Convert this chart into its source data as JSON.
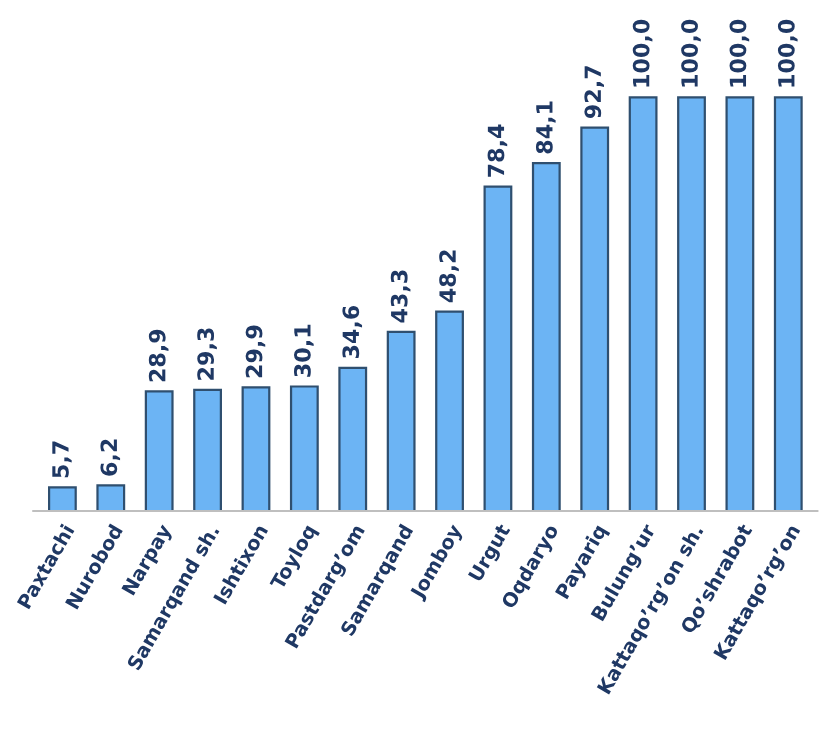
{
  "chart_data": {
    "type": "bar",
    "categories": [
      "Paxtachi",
      "Nurobod",
      "Narpay",
      "Samarqand sh.",
      "Ishtixon",
      "Toyloq",
      "Pastdarg’om",
      "Samarqand",
      "Jomboy",
      "Urgut",
      "Oqdaryo",
      "Payariq",
      "Bulung’ur",
      "Kattaqo’rg’on sh.",
      "Qo’shrabot",
      "Kattaqo’rg’on"
    ],
    "values": [
      5.7,
      6.2,
      28.9,
      29.3,
      29.9,
      30.1,
      34.6,
      43.3,
      48.2,
      78.4,
      84.1,
      92.7,
      100.0,
      100.0,
      100.0,
      100.0
    ],
    "value_labels": [
      "5,7",
      "6,2",
      "28,9",
      "29,3",
      "29,9",
      "30,1",
      "34,6",
      "43,3",
      "48,2",
      "78,4",
      "84,1",
      "92,7",
      "100,0",
      "100,0",
      "100,0",
      "100,0"
    ],
    "color": "#6cb4f4",
    "grid": false,
    "legend": false
  }
}
